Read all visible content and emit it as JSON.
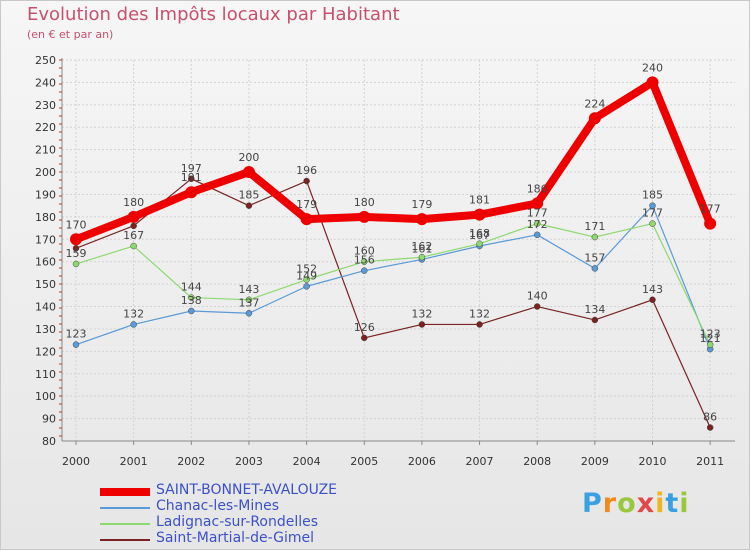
{
  "title": "Evolution des Impôts locaux par Habitant",
  "subtitle": "(en € et par an)",
  "logo_text": "Proxiti",
  "chart_data": {
    "type": "line",
    "title": "Evolution des Impôts locaux par Habitant",
    "subtitle": "(en € et par an)",
    "xlabel": "",
    "ylabel": "",
    "ylim": [
      80,
      250
    ],
    "yticks": [
      "80",
      "90",
      "100",
      "110",
      "120",
      "130",
      "140",
      "150",
      "160",
      "170",
      "180",
      "190",
      "200",
      "210",
      "220",
      "230",
      "240",
      "250"
    ],
    "categories": [
      "2000",
      "2001",
      "2002",
      "2003",
      "2004",
      "2005",
      "2006",
      "2007",
      "2008",
      "2009",
      "2010",
      "2011"
    ],
    "grid": true,
    "legend_position": "bottom-left",
    "series": [
      {
        "name": "Saint-Martial-de-Gimel",
        "color": "#7a2222",
        "values": [
          166,
          176,
          197,
          185,
          196,
          126,
          132,
          132,
          140,
          134,
          143,
          86
        ],
        "labels": [
          "",
          "",
          "197",
          "185",
          "196",
          "126",
          "132",
          "132",
          "140",
          "134",
          "143",
          "86"
        ]
      },
      {
        "name": "Chanac-les-Mines",
        "color": "#5a9ad6",
        "values": [
          123,
          132,
          138,
          137,
          149,
          156,
          161,
          167,
          172,
          157,
          185,
          121
        ],
        "labels": [
          "123",
          "132",
          "138",
          "137",
          "149",
          "156",
          "161",
          "167",
          "172",
          "157",
          "185",
          "121"
        ]
      },
      {
        "name": "Ladignac-sur-Rondelles",
        "color": "#8ed870",
        "values": [
          159,
          167,
          144,
          143,
          152,
          160,
          162,
          168,
          177,
          171,
          177,
          123
        ],
        "labels": [
          "159",
          "167",
          "144",
          "143",
          "152",
          "160",
          "162",
          "168",
          "177",
          "171",
          "177",
          "123"
        ]
      },
      {
        "name": "SAINT-BONNET-AVALOUZE",
        "color": "#ee0000",
        "values": [
          170,
          180,
          191,
          200,
          179,
          180,
          179,
          181,
          186,
          224,
          240,
          177
        ],
        "labels": [
          "170",
          "180",
          "191",
          "200",
          "179",
          "180",
          "179",
          "181",
          "186",
          "224",
          "240",
          "177"
        ]
      }
    ],
    "legend_order": [
      "SAINT-BONNET-AVALOUZE",
      "Chanac-les-Mines",
      "Ladignac-sur-Rondelles",
      "Saint-Martial-de-Gimel"
    ]
  }
}
